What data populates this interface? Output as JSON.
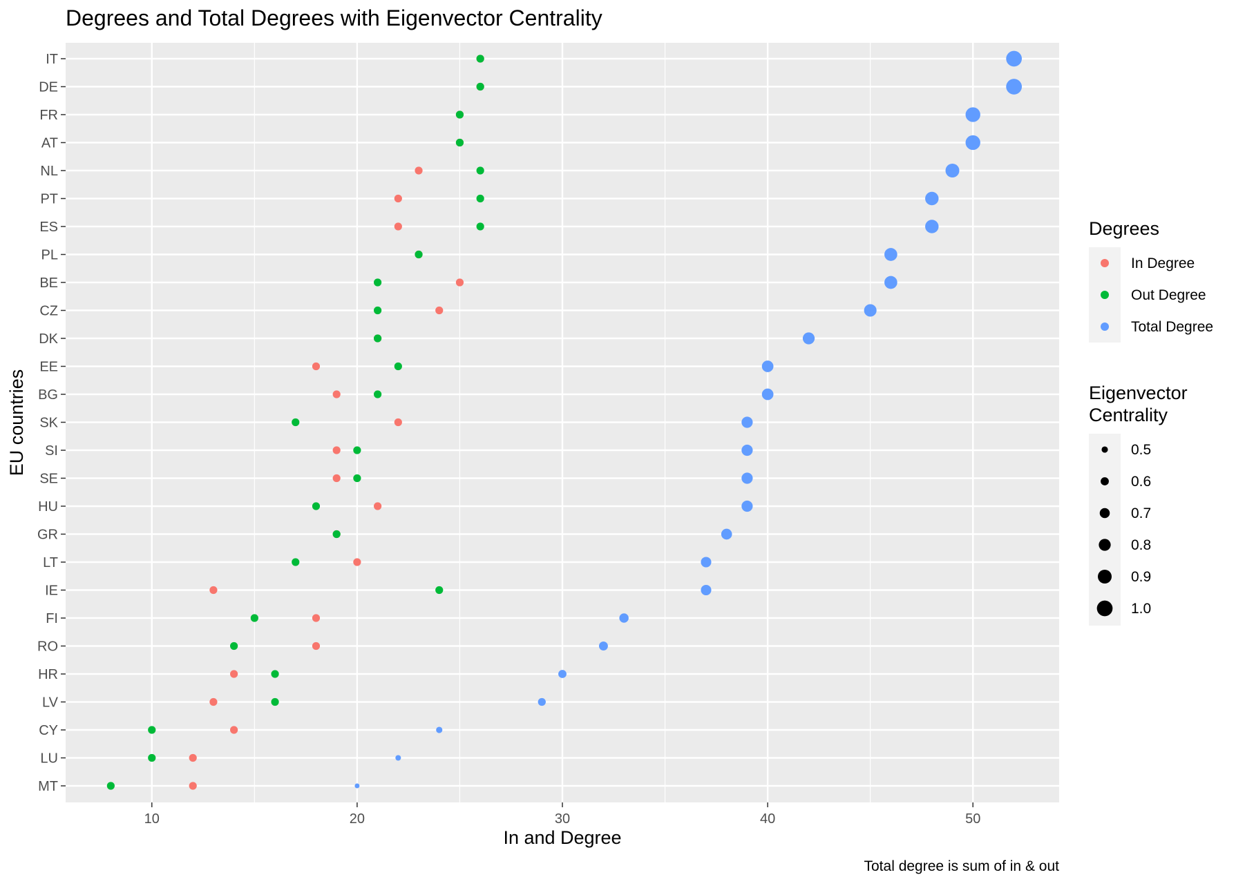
{
  "chart_data": {
    "type": "scatter",
    "title": "Degrees and Total Degrees with Eigenvector Centrality",
    "xlabel": "In and Degree",
    "ylabel": "EU countries",
    "caption": "Total degree is sum of in & out",
    "xlim": [
      5.8,
      54.2
    ],
    "xticks": [
      "10",
      "20",
      "30",
      "40",
      "50"
    ],
    "grid": true,
    "legend_position": "right",
    "categories": [
      "IT",
      "DE",
      "FR",
      "AT",
      "NL",
      "PT",
      "ES",
      "PL",
      "BE",
      "CZ",
      "DK",
      "EE",
      "BG",
      "SK",
      "SI",
      "SE",
      "HU",
      "GR",
      "LT",
      "IE",
      "FI",
      "RO",
      "HR",
      "LV",
      "CY",
      "LU",
      "MT"
    ],
    "series": [
      {
        "name": "In Degree",
        "color": "#F8766D",
        "values": [
          26,
          26,
          25,
          25,
          23,
          22,
          22,
          23,
          25,
          24,
          21,
          18,
          19,
          22,
          19,
          19,
          21,
          19,
          20,
          13,
          18,
          18,
          14,
          13,
          14,
          12,
          12
        ]
      },
      {
        "name": "Out Degree",
        "color": "#00BA38",
        "values": [
          26,
          26,
          25,
          25,
          26,
          26,
          26,
          23,
          21,
          21,
          21,
          22,
          21,
          17,
          20,
          20,
          18,
          19,
          17,
          24,
          15,
          14,
          16,
          16,
          10,
          10,
          8
        ]
      },
      {
        "name": "Total Degree",
        "color": "#619CFF",
        "values": [
          52,
          52,
          50,
          50,
          49,
          48,
          48,
          46,
          46,
          45,
          42,
          40,
          40,
          39,
          39,
          39,
          39,
          38,
          37,
          37,
          33,
          32,
          30,
          29,
          24,
          22,
          20
        ]
      }
    ],
    "centrality": [
      1.0,
      1.0,
      0.95,
      0.95,
      0.9,
      0.88,
      0.88,
      0.85,
      0.85,
      0.83,
      0.8,
      0.78,
      0.78,
      0.76,
      0.76,
      0.76,
      0.76,
      0.74,
      0.72,
      0.72,
      0.66,
      0.64,
      0.6,
      0.58,
      0.5,
      0.46,
      0.42
    ],
    "legend_degrees": {
      "title": "Degrees",
      "items": [
        "In Degree",
        "Out Degree",
        "Total Degree"
      ]
    },
    "legend_size": {
      "title_lines": [
        "Eigenvector",
        "Centrality"
      ],
      "items": [
        "0.5",
        "0.6",
        "0.7",
        "0.8",
        "0.9",
        "1.0"
      ],
      "values": [
        0.5,
        0.6,
        0.7,
        0.8,
        0.9,
        1.0
      ]
    }
  }
}
